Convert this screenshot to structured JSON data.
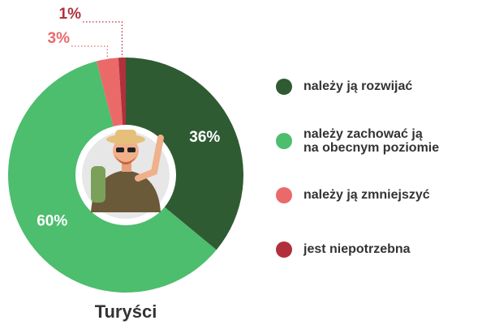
{
  "chart_data": {
    "type": "pie",
    "title": "Turyści",
    "categories": [
      "należy ją rozwijać",
      "należy zachować ją na obecnym poziomie",
      "należy ją zmniejszyć",
      "jest niepotrzebna"
    ],
    "values": [
      36,
      60,
      3,
      1
    ],
    "value_labels": [
      "36%",
      "60%",
      "3%",
      "1%"
    ],
    "colors": [
      "#2f5b33",
      "#4dbd6e",
      "#ea6a6a",
      "#b2303b"
    ],
    "legend": "right"
  }
}
